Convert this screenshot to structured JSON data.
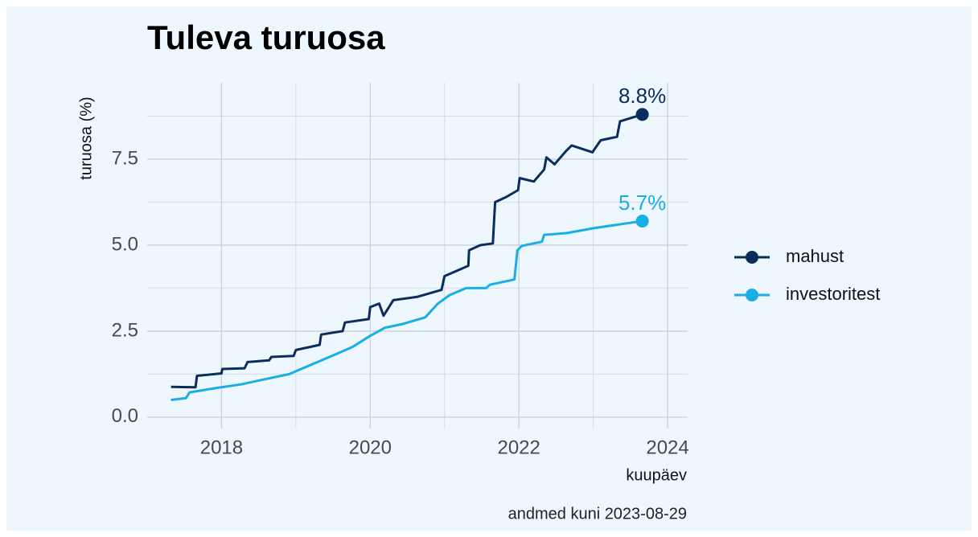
{
  "chart_data": {
    "type": "line",
    "title": "Tuleva turuosa",
    "x_label": "kuupäev",
    "y_label": "turuosa (%)",
    "caption": "andmed kuni 2023-08-29",
    "xlim": [
      2017.0,
      2024.27
    ],
    "xticks": [
      2018,
      2020,
      2022,
      2024
    ],
    "x_minor_ticks": [
      2019,
      2021,
      2023
    ],
    "ylim": [
      -0.33,
      9.72
    ],
    "yticks": [
      {
        "value": 0,
        "label": "0.0"
      },
      2.5,
      {
        "value": 5,
        "label": "5.0"
      },
      7.5
    ],
    "y_minor_ticks": [
      1.25,
      3.75,
      6.25,
      8.75
    ],
    "grid": true,
    "legend": "right",
    "series": [
      {
        "name": "mahust",
        "color": "#0b2d5c",
        "x": [
          2017.32,
          2017.65,
          2017.67,
          2018.0,
          2018.01,
          2018.31,
          2018.35,
          2018.64,
          2018.67,
          2018.97,
          2019.0,
          2019.32,
          2019.34,
          2019.63,
          2019.66,
          2019.98,
          2020.0,
          2020.12,
          2020.18,
          2020.31,
          2020.64,
          2020.96,
          2021.0,
          2021.32,
          2021.33,
          2021.48,
          2021.65,
          2021.68,
          2021.83,
          2021.99,
          2022.01,
          2022.2,
          2022.34,
          2022.37,
          2022.48,
          2022.64,
          2022.71,
          2022.99,
          2023.02,
          2023.1,
          2023.32,
          2023.36,
          2023.66
        ],
        "values": [
          0.88,
          0.87,
          1.2,
          1.27,
          1.4,
          1.42,
          1.6,
          1.65,
          1.75,
          1.78,
          1.95,
          2.1,
          2.4,
          2.5,
          2.75,
          2.85,
          3.2,
          3.3,
          2.95,
          3.4,
          3.5,
          3.7,
          4.1,
          4.4,
          4.85,
          5.0,
          5.05,
          6.25,
          6.4,
          6.6,
          6.95,
          6.85,
          7.2,
          7.55,
          7.35,
          7.75,
          7.9,
          7.7,
          7.8,
          8.05,
          8.15,
          8.6,
          8.8
        ],
        "value_labels": [
          null,
          null,
          null,
          null,
          null,
          null,
          null,
          null,
          null,
          null,
          null,
          null,
          null,
          null,
          null,
          null,
          null,
          null,
          null,
          null,
          null,
          null,
          null,
          null,
          null,
          null,
          null,
          null,
          null,
          null,
          null,
          null,
          null,
          null,
          null,
          null,
          null,
          null,
          null,
          null,
          null,
          null,
          "8.8%"
        ]
      },
      {
        "name": "investoritest",
        "color": "#18aee6",
        "x": [
          2017.32,
          2017.52,
          2017.57,
          2017.94,
          2018.26,
          2018.58,
          2018.91,
          2019.18,
          2019.56,
          2019.77,
          2019.99,
          2020.2,
          2020.42,
          2020.74,
          2020.91,
          2021.07,
          2021.29,
          2021.56,
          2021.61,
          2021.94,
          2021.98,
          2022.04,
          2022.31,
          2022.34,
          2022.64,
          2023.02,
          2023.34,
          2023.66
        ],
        "values": [
          0.5,
          0.55,
          0.72,
          0.85,
          0.95,
          1.1,
          1.25,
          1.5,
          1.85,
          2.05,
          2.35,
          2.6,
          2.7,
          2.9,
          3.3,
          3.55,
          3.75,
          3.75,
          3.85,
          4.0,
          4.85,
          4.98,
          5.1,
          5.3,
          5.35,
          5.5,
          5.6,
          5.7
        ],
        "value_labels": [
          null,
          null,
          null,
          null,
          null,
          null,
          null,
          null,
          null,
          null,
          null,
          null,
          null,
          null,
          null,
          null,
          null,
          null,
          null,
          null,
          null,
          null,
          null,
          null,
          null,
          null,
          null,
          "5.7%"
        ]
      }
    ]
  }
}
